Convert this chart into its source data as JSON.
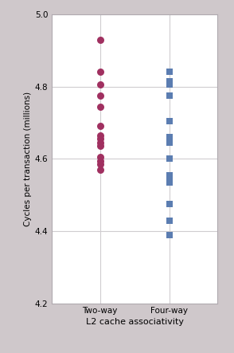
{
  "two_way": [
    4.93,
    4.84,
    4.805,
    4.775,
    4.745,
    4.69,
    4.665,
    4.655,
    4.645,
    4.635,
    4.605,
    4.595,
    4.585,
    4.57
  ],
  "four_way": [
    4.84,
    4.815,
    4.805,
    4.775,
    4.705,
    4.66,
    4.655,
    4.645,
    4.6,
    4.555,
    4.545,
    4.54,
    4.535,
    4.475,
    4.43,
    4.39
  ],
  "two_way_color": "#a03060",
  "four_way_color": "#5b7db1",
  "background_color": "#cfc8cb",
  "plot_bg_color": "#ffffff",
  "ylabel": "Cycles per transaction (millions)",
  "xlabel": "L2 cache associativity",
  "xtick_labels": [
    "Two-way",
    "Four-way"
  ],
  "xtick_positions": [
    1,
    2
  ],
  "xlim": [
    0.3,
    2.7
  ],
  "ylim": [
    4.2,
    5.0
  ],
  "yticks": [
    4.2,
    4.4,
    4.6,
    4.8,
    5.0
  ],
  "grid_color": "#d0cdd0",
  "spine_color": "#b0aab0",
  "marker_size_circle": 42,
  "marker_size_square": 38,
  "ylabel_fontsize": 7.5,
  "xlabel_fontsize": 8,
  "tick_fontsize": 7.5
}
